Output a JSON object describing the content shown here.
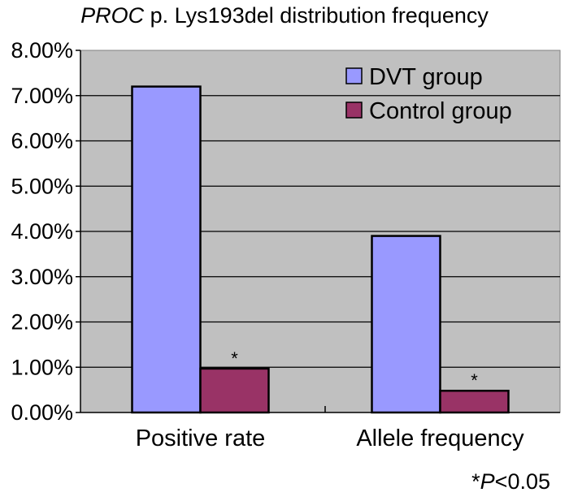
{
  "chart_data": {
    "type": "bar",
    "title_italic": "PROC",
    "title_rest": " p. Lys193del distribution frequency",
    "categories": [
      "Positive rate",
      "Allele frequency"
    ],
    "series": [
      {
        "name": "DVT group",
        "values": [
          7.2,
          3.9
        ],
        "color": "#9999ff"
      },
      {
        "name": "Control group",
        "values": [
          0.97,
          0.48
        ],
        "color": "#993366"
      }
    ],
    "ylim": [
      0,
      8
    ],
    "yticks": [
      "0.00%",
      "1.00%",
      "2.00%",
      "3.00%",
      "4.00%",
      "5.00%",
      "6.00%",
      "7.00%",
      "8.00%"
    ],
    "ytick_values": [
      0,
      1,
      2,
      3,
      4,
      5,
      6,
      7,
      8
    ],
    "significance_marks": [
      {
        "category": 0,
        "series": 1,
        "label": "*"
      },
      {
        "category": 1,
        "series": 1,
        "label": "*"
      }
    ],
    "footnote_star": "*",
    "footnote_italic": "P",
    "footnote_rest": "<0.05",
    "plot_background": "#c0c0c0",
    "grid": true,
    "legend_position": "top-right"
  }
}
